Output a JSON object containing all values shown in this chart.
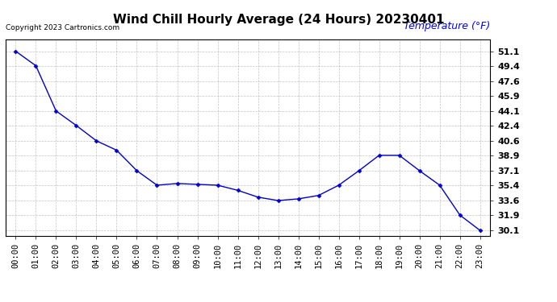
{
  "title": "Wind Chill Hourly Average (24 Hours) 20230401",
  "ylabel": "Temperature (°F)",
  "copyright": "Copyright 2023 Cartronics.com",
  "hours": [
    0,
    1,
    2,
    3,
    4,
    5,
    6,
    7,
    8,
    9,
    10,
    11,
    12,
    13,
    14,
    15,
    16,
    17,
    18,
    19,
    20,
    21,
    22,
    23
  ],
  "hour_labels": [
    "00:00",
    "01:00",
    "02:00",
    "03:00",
    "04:00",
    "05:00",
    "06:00",
    "07:00",
    "08:00",
    "09:00",
    "10:00",
    "11:00",
    "12:00",
    "13:00",
    "14:00",
    "15:00",
    "16:00",
    "17:00",
    "18:00",
    "19:00",
    "20:00",
    "21:00",
    "22:00",
    "23:00"
  ],
  "values": [
    51.1,
    49.4,
    44.1,
    42.4,
    40.6,
    39.5,
    37.1,
    35.4,
    35.6,
    35.5,
    35.4,
    34.8,
    34.0,
    33.6,
    33.8,
    34.2,
    35.4,
    37.1,
    38.9,
    38.9,
    37.1,
    35.4,
    31.9,
    30.1
  ],
  "line_color": "#0000cc",
  "marker": "D",
  "marker_size": 2.5,
  "yticks": [
    30.1,
    31.9,
    33.6,
    35.4,
    37.1,
    38.9,
    40.6,
    42.4,
    44.1,
    45.9,
    47.6,
    49.4,
    51.1
  ],
  "ytick_labels": [
    "30.1",
    "31.9",
    "33.6",
    "35.4",
    "37.1",
    "38.9",
    "40.6",
    "42.4",
    "44.1",
    "45.9",
    "47.6",
    "49.4",
    "51.1"
  ],
  "background_color": "#ffffff",
  "grid_color": "#aaaaaa",
  "title_fontsize": 11,
  "tick_fontsize": 7.5,
  "ylabel_color": "#0000ff",
  "copyright_color": "#000000",
  "copyright_fontsize": 6.5,
  "ylabel_fontsize": 9
}
